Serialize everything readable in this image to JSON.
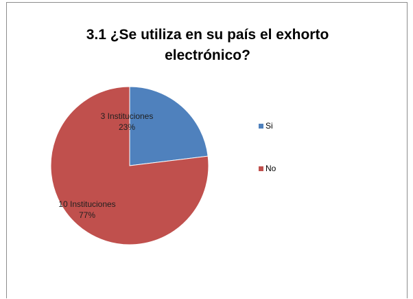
{
  "chart_data": {
    "type": "pie",
    "title": "3.1 ¿Se utiliza en su país el  exhorto electrónico?",
    "title_lines": [
      "3.1 ¿Se utiliza en su país el  exhorto",
      "electrónico?"
    ],
    "legend_position": "right",
    "slices": [
      {
        "name": "Si",
        "value": 3,
        "percent": 23,
        "label_count": "3 Instituciones",
        "label_percent": "23%",
        "color": "#4f81bd"
      },
      {
        "name": "No",
        "value": 10,
        "percent": 77,
        "label_count": "10 Instituciones",
        "label_percent": "77%",
        "color": "#c0504d"
      }
    ]
  }
}
